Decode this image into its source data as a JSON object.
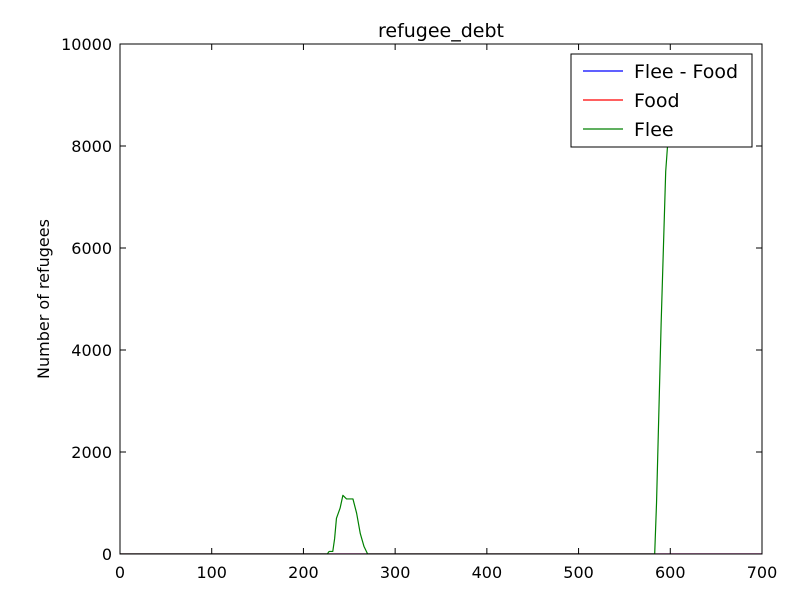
{
  "chart_data": {
    "type": "line",
    "title": "refugee_debt",
    "xlabel": "",
    "ylabel": "Number of refugees",
    "xlim": [
      0,
      700
    ],
    "ylim": [
      0,
      10000
    ],
    "xticks": [
      0,
      100,
      200,
      300,
      400,
      500,
      600,
      700
    ],
    "yticks": [
      0,
      2000,
      4000,
      6000,
      8000,
      10000
    ],
    "xtick_labels": [
      "0",
      "100",
      "200",
      "300",
      "400",
      "500",
      "600",
      "700"
    ],
    "ytick_labels": [
      "0",
      "2000",
      "4000",
      "6000",
      "8000",
      "10000"
    ],
    "grid": false,
    "legend_position": "top-right",
    "series": [
      {
        "name": "Flee - Food",
        "color": "#0000ff",
        "x": [
          0,
          225,
          700
        ],
        "y": [
          0,
          0,
          0
        ]
      },
      {
        "name": "Food",
        "color": "#ff0000",
        "x": [
          0,
          225,
          700
        ],
        "y": [
          0,
          0,
          0
        ]
      },
      {
        "name": "Flee",
        "color": "#008000",
        "x": [
          0,
          226,
          228,
          232,
          234,
          236,
          240,
          243,
          247,
          250,
          254,
          258,
          262,
          266,
          270,
          300,
          400,
          500,
          583,
          585,
          590,
          595,
          597
        ],
        "y": [
          0,
          0,
          50,
          50,
          300,
          700,
          900,
          1150,
          1080,
          1080,
          1080,
          800,
          400,
          150,
          0,
          0,
          0,
          0,
          0,
          1000,
          4500,
          7500,
          8000
        ]
      }
    ]
  }
}
